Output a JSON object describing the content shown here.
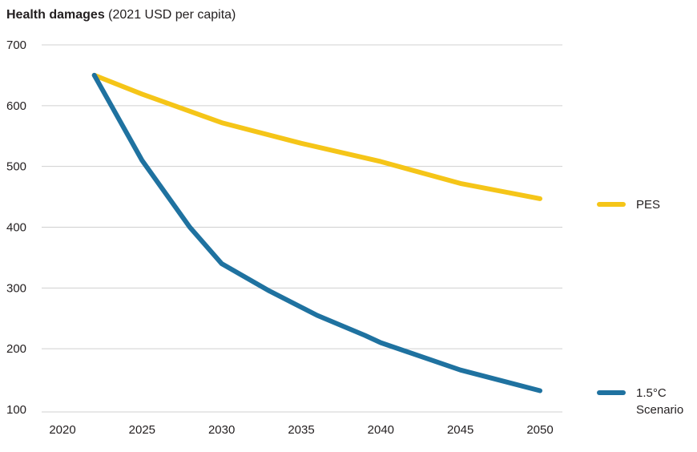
{
  "header": {
    "title": "Health damages",
    "subtitle": "(2021 USD per capita)"
  },
  "colors": {
    "pes": "#f5c518",
    "scenario": "#1f72a0",
    "grid": "#d0d0d0"
  },
  "chart_data": {
    "type": "line",
    "title": "Health damages",
    "subtitle": "(2021 USD per capita)",
    "xlabel": "",
    "ylabel": "",
    "xlim": [
      2018,
      2051
    ],
    "ylim": [
      100,
      700
    ],
    "xticks": [
      2020,
      2025,
      2030,
      2035,
      2040,
      2045,
      2050
    ],
    "yticks": [
      100,
      200,
      300,
      400,
      500,
      600,
      700
    ],
    "grid": true,
    "legend_position": "right",
    "series": [
      {
        "name": "PES",
        "color": "#f5c518",
        "x": [
          2022,
          2025,
          2030,
          2035,
          2040,
          2045,
          2050
        ],
        "y": [
          650,
          619,
          572,
          538,
          508,
          472,
          447
        ]
      },
      {
        "name": "1.5°C Scenario",
        "color": "#1f72a0",
        "x": [
          2022,
          2025,
          2028,
          2030,
          2033,
          2036,
          2039,
          2040,
          2045,
          2050
        ],
        "y": [
          650,
          510,
          400,
          340,
          295,
          255,
          222,
          210,
          165,
          131
        ]
      }
    ],
    "legend": [
      {
        "label": "PES",
        "series": 0
      },
      {
        "label": "1.5°C",
        "label2": "Scenario",
        "series": 1
      }
    ]
  }
}
